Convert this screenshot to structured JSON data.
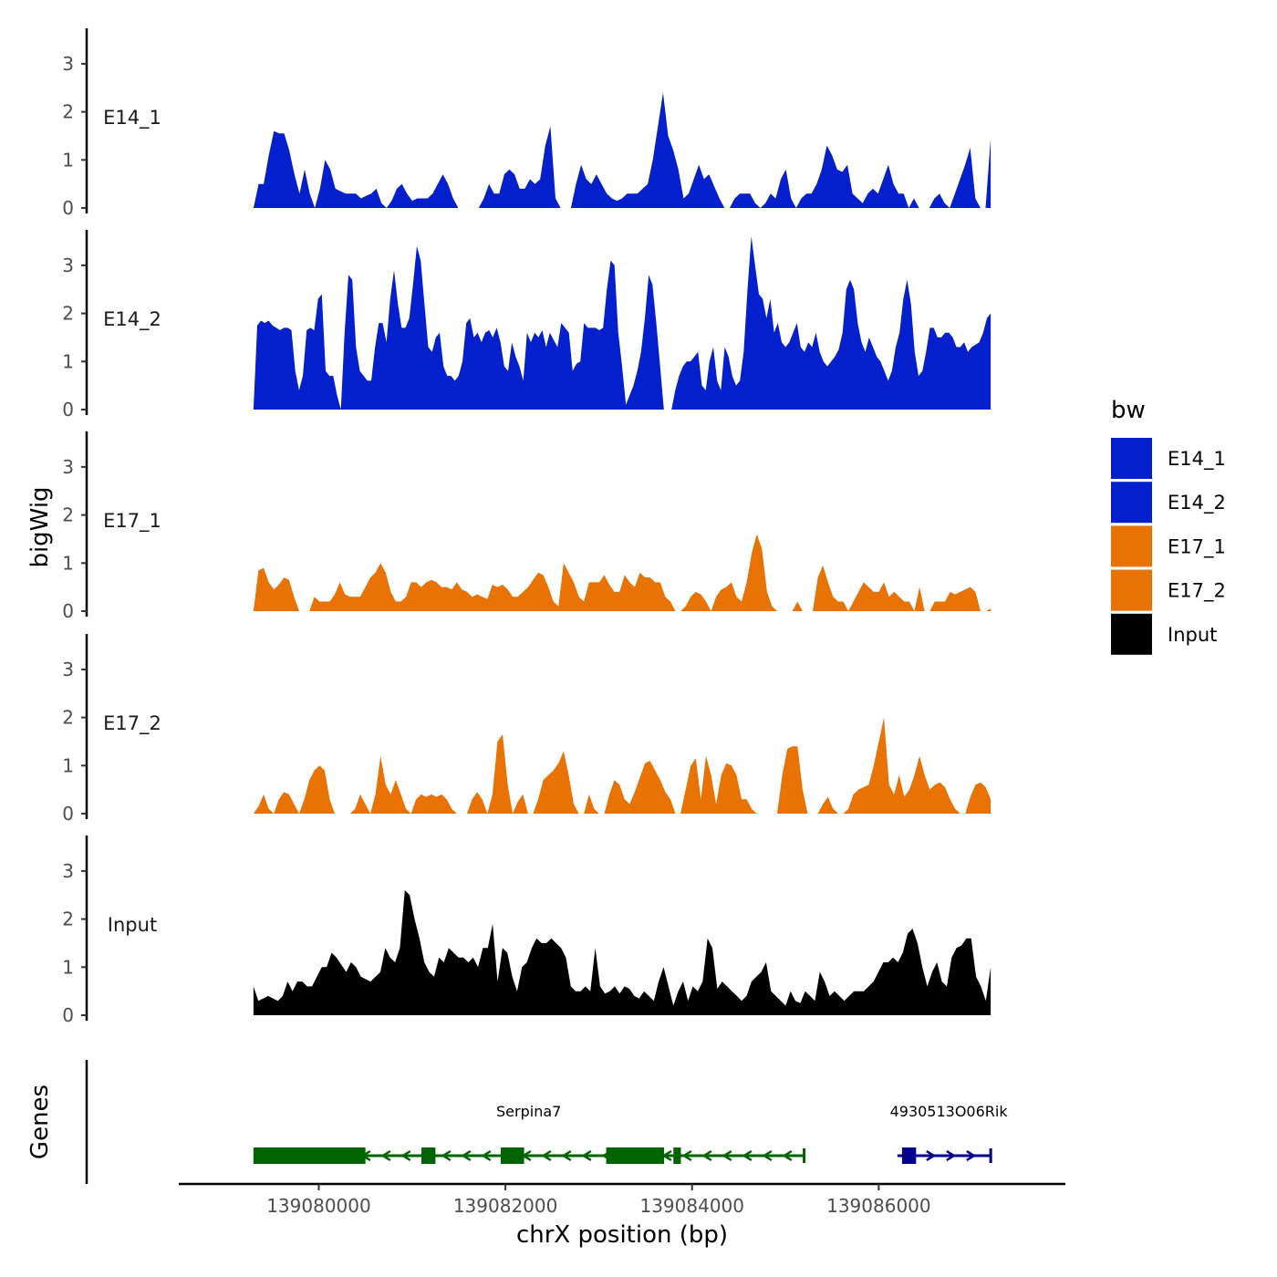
{
  "chart_data": {
    "type": "area",
    "title": "",
    "ylabel": "bigWig",
    "xlabel": "chrX position (bp)",
    "xlim": [
      139078500,
      139088000
    ],
    "ylim": [
      0,
      3.7
    ],
    "region": [
      139079300,
      139087200
    ],
    "x_ticks": [
      139080000,
      139082000,
      139084000,
      139086000
    ],
    "x_tick_labels": [
      "139080000",
      "139082000",
      "139084000",
      "139086000"
    ],
    "y_ticks": [
      0,
      1,
      2,
      3
    ],
    "y_tick_labels": [
      "0",
      "1",
      "2",
      "3"
    ],
    "genes_label": "Genes",
    "legend": {
      "title": "bw",
      "entries": [
        {
          "label": "E14_1",
          "color": "#0320CC"
        },
        {
          "label": "E14_2",
          "color": "#0320CC"
        },
        {
          "label": "E17_1",
          "color": "#E87203"
        },
        {
          "label": "E17_2",
          "color": "#E87203"
        },
        {
          "label": "Input",
          "color": "#000000"
        }
      ]
    },
    "tracks": [
      {
        "name": "E14_1",
        "color": "#0320CC",
        "values": [
          0,
          0.5,
          0.5,
          1.1,
          1.6,
          1.55,
          1.55,
          1.2,
          0.7,
          0.3,
          0.8,
          0.3,
          0,
          0.4,
          1,
          0.8,
          0.4,
          0.35,
          0.3,
          0.3,
          0.3,
          0.2,
          0.25,
          0.3,
          0.4,
          0.1,
          0,
          0.15,
          0.4,
          0.5,
          0.3,
          0.15,
          0.2,
          0.2,
          0.2,
          0.3,
          0.5,
          0.7,
          0.5,
          0.2,
          0,
          0,
          0,
          0,
          0,
          0.2,
          0.5,
          0.3,
          0.3,
          0.7,
          0.8,
          0.7,
          0.4,
          0.4,
          0.6,
          0.5,
          0.6,
          1.3,
          1.7,
          0.2,
          0,
          0,
          0,
          0.5,
          0.9,
          0.6,
          0.5,
          0.7,
          0.5,
          0.3,
          0.2,
          0.15,
          0.2,
          0.3,
          0.3,
          0.3,
          0.4,
          0.5,
          1,
          1.7,
          2.4,
          1.5,
          1.2,
          0.8,
          0.2,
          0.3,
          0.6,
          0.9,
          0.6,
          0.7,
          0.45,
          0.2,
          0,
          0,
          0.2,
          0.3,
          0.3,
          0.3,
          0.1,
          0,
          0.1,
          0.3,
          0.2,
          0.6,
          0.8,
          0.2,
          0,
          0.2,
          0.3,
          0.3,
          0.5,
          0.8,
          1.3,
          1.1,
          0.8,
          0.75,
          0.9,
          0.3,
          0.2,
          0.1,
          0.3,
          0.4,
          0.3,
          0.6,
          0.9,
          0.5,
          0.3,
          0.3,
          0,
          0.2,
          0,
          0,
          0,
          0.2,
          0.3,
          0.1,
          0,
          0.3,
          0.6,
          0.9,
          1.25,
          0.2,
          0,
          0,
          1.45
        ]
      },
      {
        "name": "E14_2",
        "color": "#0320CC",
        "values": [
          0,
          1.75,
          1.85,
          1.8,
          1.85,
          1.75,
          1.7,
          1.65,
          1.7,
          1.7,
          1.65,
          0.8,
          0.4,
          0.7,
          1.65,
          1.7,
          1.65,
          2.3,
          2.4,
          0.8,
          0.7,
          0.7,
          0.3,
          0,
          1.6,
          2.8,
          2.7,
          1.3,
          0.8,
          0.7,
          0.6,
          0.6,
          1.3,
          1.8,
          1.8,
          1.4,
          2.3,
          2.9,
          2.2,
          1.7,
          1.7,
          1.9,
          2.6,
          3.4,
          3.1,
          2.2,
          1.3,
          1.2,
          1.5,
          1.6,
          0.9,
          0.7,
          0.7,
          0.6,
          0.7,
          1,
          1.8,
          1.9,
          1.5,
          1.6,
          1.4,
          1.6,
          1.65,
          1.5,
          1.7,
          1.4,
          0.9,
          0.8,
          1.4,
          1.1,
          0.9,
          0.6,
          1.6,
          1.4,
          1.6,
          1.5,
          1.65,
          1.3,
          1.6,
          1.45,
          1.3,
          1.8,
          1.7,
          1.6,
          0.8,
          0.95,
          1,
          1.8,
          1.7,
          1.7,
          1.7,
          1.65,
          1.7,
          2.5,
          3.1,
          3,
          1.6,
          0.9,
          0.1,
          0.3,
          0.5,
          0.8,
          1.2,
          1.9,
          2.8,
          2.6,
          1.8,
          0.9,
          0,
          0,
          0,
          0.4,
          0.7,
          0.9,
          1,
          1,
          1.1,
          1.2,
          0.5,
          0.4,
          1,
          1.3,
          0.6,
          0.4,
          1.3,
          1.1,
          0.7,
          0.5,
          0.6,
          1.2,
          2.5,
          3.6,
          3,
          2.4,
          2.3,
          1.9,
          2.3,
          1.6,
          1.8,
          1.4,
          1.3,
          1.4,
          1.6,
          1.8,
          1.3,
          1.2,
          1.4,
          1.3,
          1.6,
          1.2,
          1,
          0.9,
          1,
          1.1,
          1.25,
          1.6,
          2.5,
          2.7,
          2.5,
          1.8,
          1.4,
          1.2,
          1.5,
          1.3,
          1.1,
          1,
          0.8,
          0.6,
          0.8,
          1.3,
          1.6,
          2.3,
          2.7,
          2.2,
          1.2,
          0.7,
          0.8,
          1.2,
          1.7,
          1.7,
          1.5,
          1.5,
          1.6,
          1.6,
          1.5,
          1.3,
          1.3,
          1.4,
          1.2,
          1.3,
          1.35,
          1.4,
          1.6,
          1.9,
          2
        ]
      },
      {
        "name": "E17_1",
        "color": "#E87203",
        "values": [
          0,
          0.85,
          0.9,
          0.6,
          0.45,
          0.55,
          0.7,
          0.65,
          0.3,
          0,
          0,
          0,
          0.3,
          0.2,
          0.2,
          0.2,
          0.35,
          0.6,
          0.35,
          0.3,
          0.3,
          0.3,
          0.5,
          0.7,
          0.8,
          1,
          0.8,
          0.4,
          0.2,
          0.2,
          0.3,
          0.6,
          0.6,
          0.5,
          0.6,
          0.65,
          0.6,
          0.5,
          0.5,
          0.45,
          0.6,
          0.45,
          0.4,
          0.3,
          0.35,
          0.3,
          0.25,
          0.55,
          0.5,
          0.55,
          0.45,
          0.3,
          0.3,
          0.4,
          0.5,
          0.65,
          0.8,
          0.75,
          0.5,
          0.2,
          0.1,
          1,
          0.8,
          0.6,
          0.3,
          0.2,
          0.6,
          0.6,
          0.6,
          0.75,
          0.55,
          0.4,
          0.4,
          0.75,
          0.6,
          0.5,
          0.8,
          0.7,
          0.7,
          0.6,
          0.6,
          0.3,
          0.2,
          0,
          0,
          0.1,
          0.3,
          0.4,
          0.35,
          0.2,
          0,
          0.3,
          0.45,
          0.5,
          0.6,
          0.3,
          0.2,
          0.6,
          1.2,
          1.6,
          1.3,
          0.4,
          0.1,
          0,
          0,
          0,
          0,
          0.2,
          0,
          0,
          0,
          0.7,
          0.95,
          0.6,
          0.3,
          0.2,
          0.2,
          0,
          0.2,
          0.4,
          0.6,
          0.5,
          0.4,
          0.4,
          0.6,
          0.3,
          0.4,
          0.3,
          0.2,
          0.2,
          0,
          0.5,
          0,
          0,
          0.2,
          0.2,
          0.2,
          0.4,
          0.35,
          0.4,
          0.45,
          0.5,
          0.4,
          0,
          0,
          0.05
        ]
      },
      {
        "name": "E17_2",
        "color": "#E87203",
        "values": [
          0,
          0.15,
          0.4,
          0.1,
          0,
          0.3,
          0.45,
          0.4,
          0.2,
          0,
          0.3,
          0.7,
          0.9,
          1,
          0.9,
          0.3,
          0,
          0,
          0,
          0,
          0.1,
          0.4,
          0.2,
          0,
          0.4,
          1.2,
          0.6,
          0.4,
          0.7,
          0.4,
          0.1,
          0,
          0.3,
          0.4,
          0.35,
          0.4,
          0.35,
          0.4,
          0.3,
          0.1,
          0,
          0,
          0,
          0.3,
          0.45,
          0.3,
          0,
          0.4,
          1.5,
          1.65,
          0.6,
          0,
          0.25,
          0.4,
          0,
          0,
          0.3,
          0.7,
          0.8,
          0.9,
          1.05,
          1.3,
          0.8,
          0.2,
          0,
          0,
          0.4,
          0.1,
          0,
          0,
          0.4,
          0.7,
          0.6,
          0.3,
          0.2,
          0.45,
          0.75,
          1.05,
          1.1,
          0.9,
          0.7,
          0.45,
          0.3,
          0,
          0,
          0.5,
          1,
          1.15,
          0.3,
          1.2,
          0.8,
          0.2,
          0.8,
          1.05,
          1,
          0.8,
          0.3,
          0.3,
          0.1,
          0,
          0,
          0,
          0,
          0,
          0.8,
          1.35,
          1.4,
          1.4,
          0.5,
          0,
          0,
          0,
          0.2,
          0.35,
          0.1,
          0,
          0,
          0.1,
          0.4,
          0.5,
          0.55,
          0.6,
          1,
          1.5,
          2,
          0.6,
          0.4,
          0.8,
          0.35,
          0.5,
          0.8,
          1.2,
          0.8,
          0.5,
          0.6,
          0.65,
          0.55,
          0.3,
          0.1,
          0,
          0,
          0.35,
          0.6,
          0.65,
          0.55,
          0.3
        ]
      },
      {
        "name": "Input",
        "color": "#000000",
        "values": [
          0.6,
          0.3,
          0.35,
          0.4,
          0.35,
          0.3,
          0.4,
          0.7,
          0.5,
          0.7,
          0.7,
          0.6,
          0.6,
          0.8,
          1,
          1,
          1.3,
          1.2,
          1.05,
          0.9,
          1.1,
          1,
          0.8,
          0.75,
          0.7,
          0.8,
          0.9,
          1.4,
          1.2,
          1.1,
          1.4,
          2.6,
          2.5,
          2,
          1.6,
          1.1,
          0.9,
          0.8,
          1.2,
          1.1,
          1.4,
          1.3,
          1.2,
          1.2,
          1.1,
          1.2,
          1,
          1.4,
          1.4,
          1.9,
          0.7,
          1.4,
          1.3,
          0.8,
          0.5,
          1,
          1.1,
          1.4,
          1.6,
          1.5,
          1.5,
          1.6,
          1.5,
          1.4,
          1.2,
          0.6,
          0.5,
          0.5,
          0.6,
          0.5,
          1.4,
          0.6,
          0.45,
          0.5,
          0.6,
          0.45,
          0.6,
          0.55,
          0.4,
          0.35,
          0.5,
          0.4,
          0.3,
          0.7,
          1,
          0.6,
          0.2,
          0.5,
          0.7,
          0.3,
          0.6,
          0.5,
          0.7,
          1.6,
          1.4,
          0.55,
          0.7,
          0.6,
          0.5,
          0.4,
          0.3,
          0.4,
          0.7,
          0.8,
          0.9,
          1.1,
          0.5,
          0.4,
          0.3,
          0.2,
          0.5,
          0.3,
          0.25,
          0.5,
          0.4,
          0.3,
          0.9,
          0.7,
          0.4,
          0.5,
          0.4,
          0.3,
          0.4,
          0.5,
          0.5,
          0.5,
          0.6,
          0.7,
          0.9,
          1.1,
          1.1,
          1.2,
          1.1,
          1.3,
          1.7,
          1.8,
          1.5,
          1,
          0.6,
          0.9,
          1.1,
          0.7,
          0.6,
          1.2,
          1.4,
          1.45,
          1.6,
          1.6,
          0.8,
          0.6,
          0.3,
          1
        ]
      }
    ],
    "genes": [
      {
        "name": "Serpina7",
        "color": "#006400",
        "strand": "-",
        "start": 139079300,
        "end": 139085200,
        "exons": [
          [
            139079300,
            139080500
          ],
          [
            139081100,
            139081250
          ],
          [
            139081950,
            139082200
          ],
          [
            139083080,
            139083700
          ],
          [
            139083800,
            139083880
          ]
        ],
        "label_pos": 139082250
      },
      {
        "name": "4930513O06Rik",
        "color": "#00008B",
        "strand": "+",
        "start": 139086200,
        "end": 139087200,
        "exons": [
          [
            139086250,
            139086400
          ]
        ],
        "label_pos": 139086750
      }
    ]
  }
}
